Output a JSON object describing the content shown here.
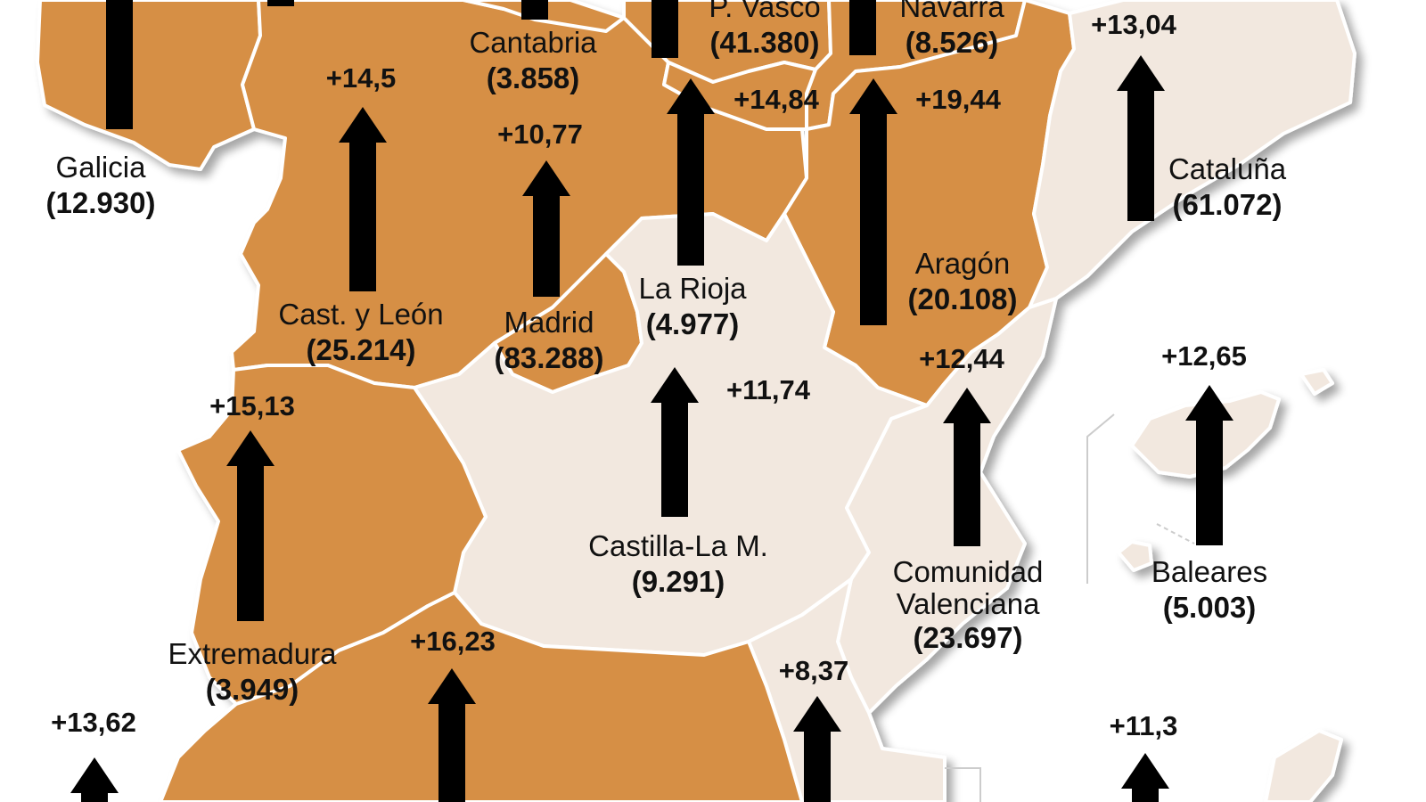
{
  "colors": {
    "highlight": "#d68f45",
    "other": "#f2e8df",
    "border": "#ffffff",
    "sea": "#ffffff",
    "arrow": "#000000"
  },
  "regions": [
    {
      "id": "galicia",
      "name": "Galicia",
      "value": "(12.930)",
      "change": "+13,62",
      "highlight": true
    },
    {
      "id": "castyleon",
      "name": "Cast. y León",
      "value": "(25.214)",
      "change": "+14,5",
      "highlight": true
    },
    {
      "id": "cantabria",
      "name": "Cantabria",
      "value": "(3.858)",
      "change": "",
      "highlight": true
    },
    {
      "id": "pvasco",
      "name": "P. Vasco",
      "value": "(41.380)",
      "change": "+14,84",
      "highlight": true
    },
    {
      "id": "navarra",
      "name": "Navarra",
      "value": "(8.526)",
      "change": "+19,44",
      "highlight": true
    },
    {
      "id": "cataluna",
      "name": "Cataluña",
      "value": "(61.072)",
      "change": "+13,04",
      "highlight": false
    },
    {
      "id": "madrid",
      "name": "Madrid",
      "value": "(83.288)",
      "change": "+10,77",
      "highlight": true
    },
    {
      "id": "larioja",
      "name": "La Rioja",
      "value": "(4.977)",
      "change": "+11,74",
      "highlight": true
    },
    {
      "id": "aragon",
      "name": "Aragón",
      "value": "(20.108)",
      "change": "+12,44",
      "highlight": true
    },
    {
      "id": "extremadura",
      "name": "Extremadura",
      "value": "(3.949)",
      "change": "+15,13",
      "highlight": true
    },
    {
      "id": "castillalam",
      "name": "Castilla-La M.",
      "value": "(9.291)",
      "change": "+8,37",
      "highlight": false
    },
    {
      "id": "valencia",
      "name": "Comunidad\nValenciana",
      "value": "(23.697)",
      "change": "+11,3",
      "highlight": false
    },
    {
      "id": "baleares",
      "name": "Baleares",
      "value": "(5.003)",
      "change": "+12,65",
      "highlight": false
    },
    {
      "id": "andalucia",
      "name": "",
      "value": "",
      "change": "+16,23",
      "highlight": true
    }
  ]
}
